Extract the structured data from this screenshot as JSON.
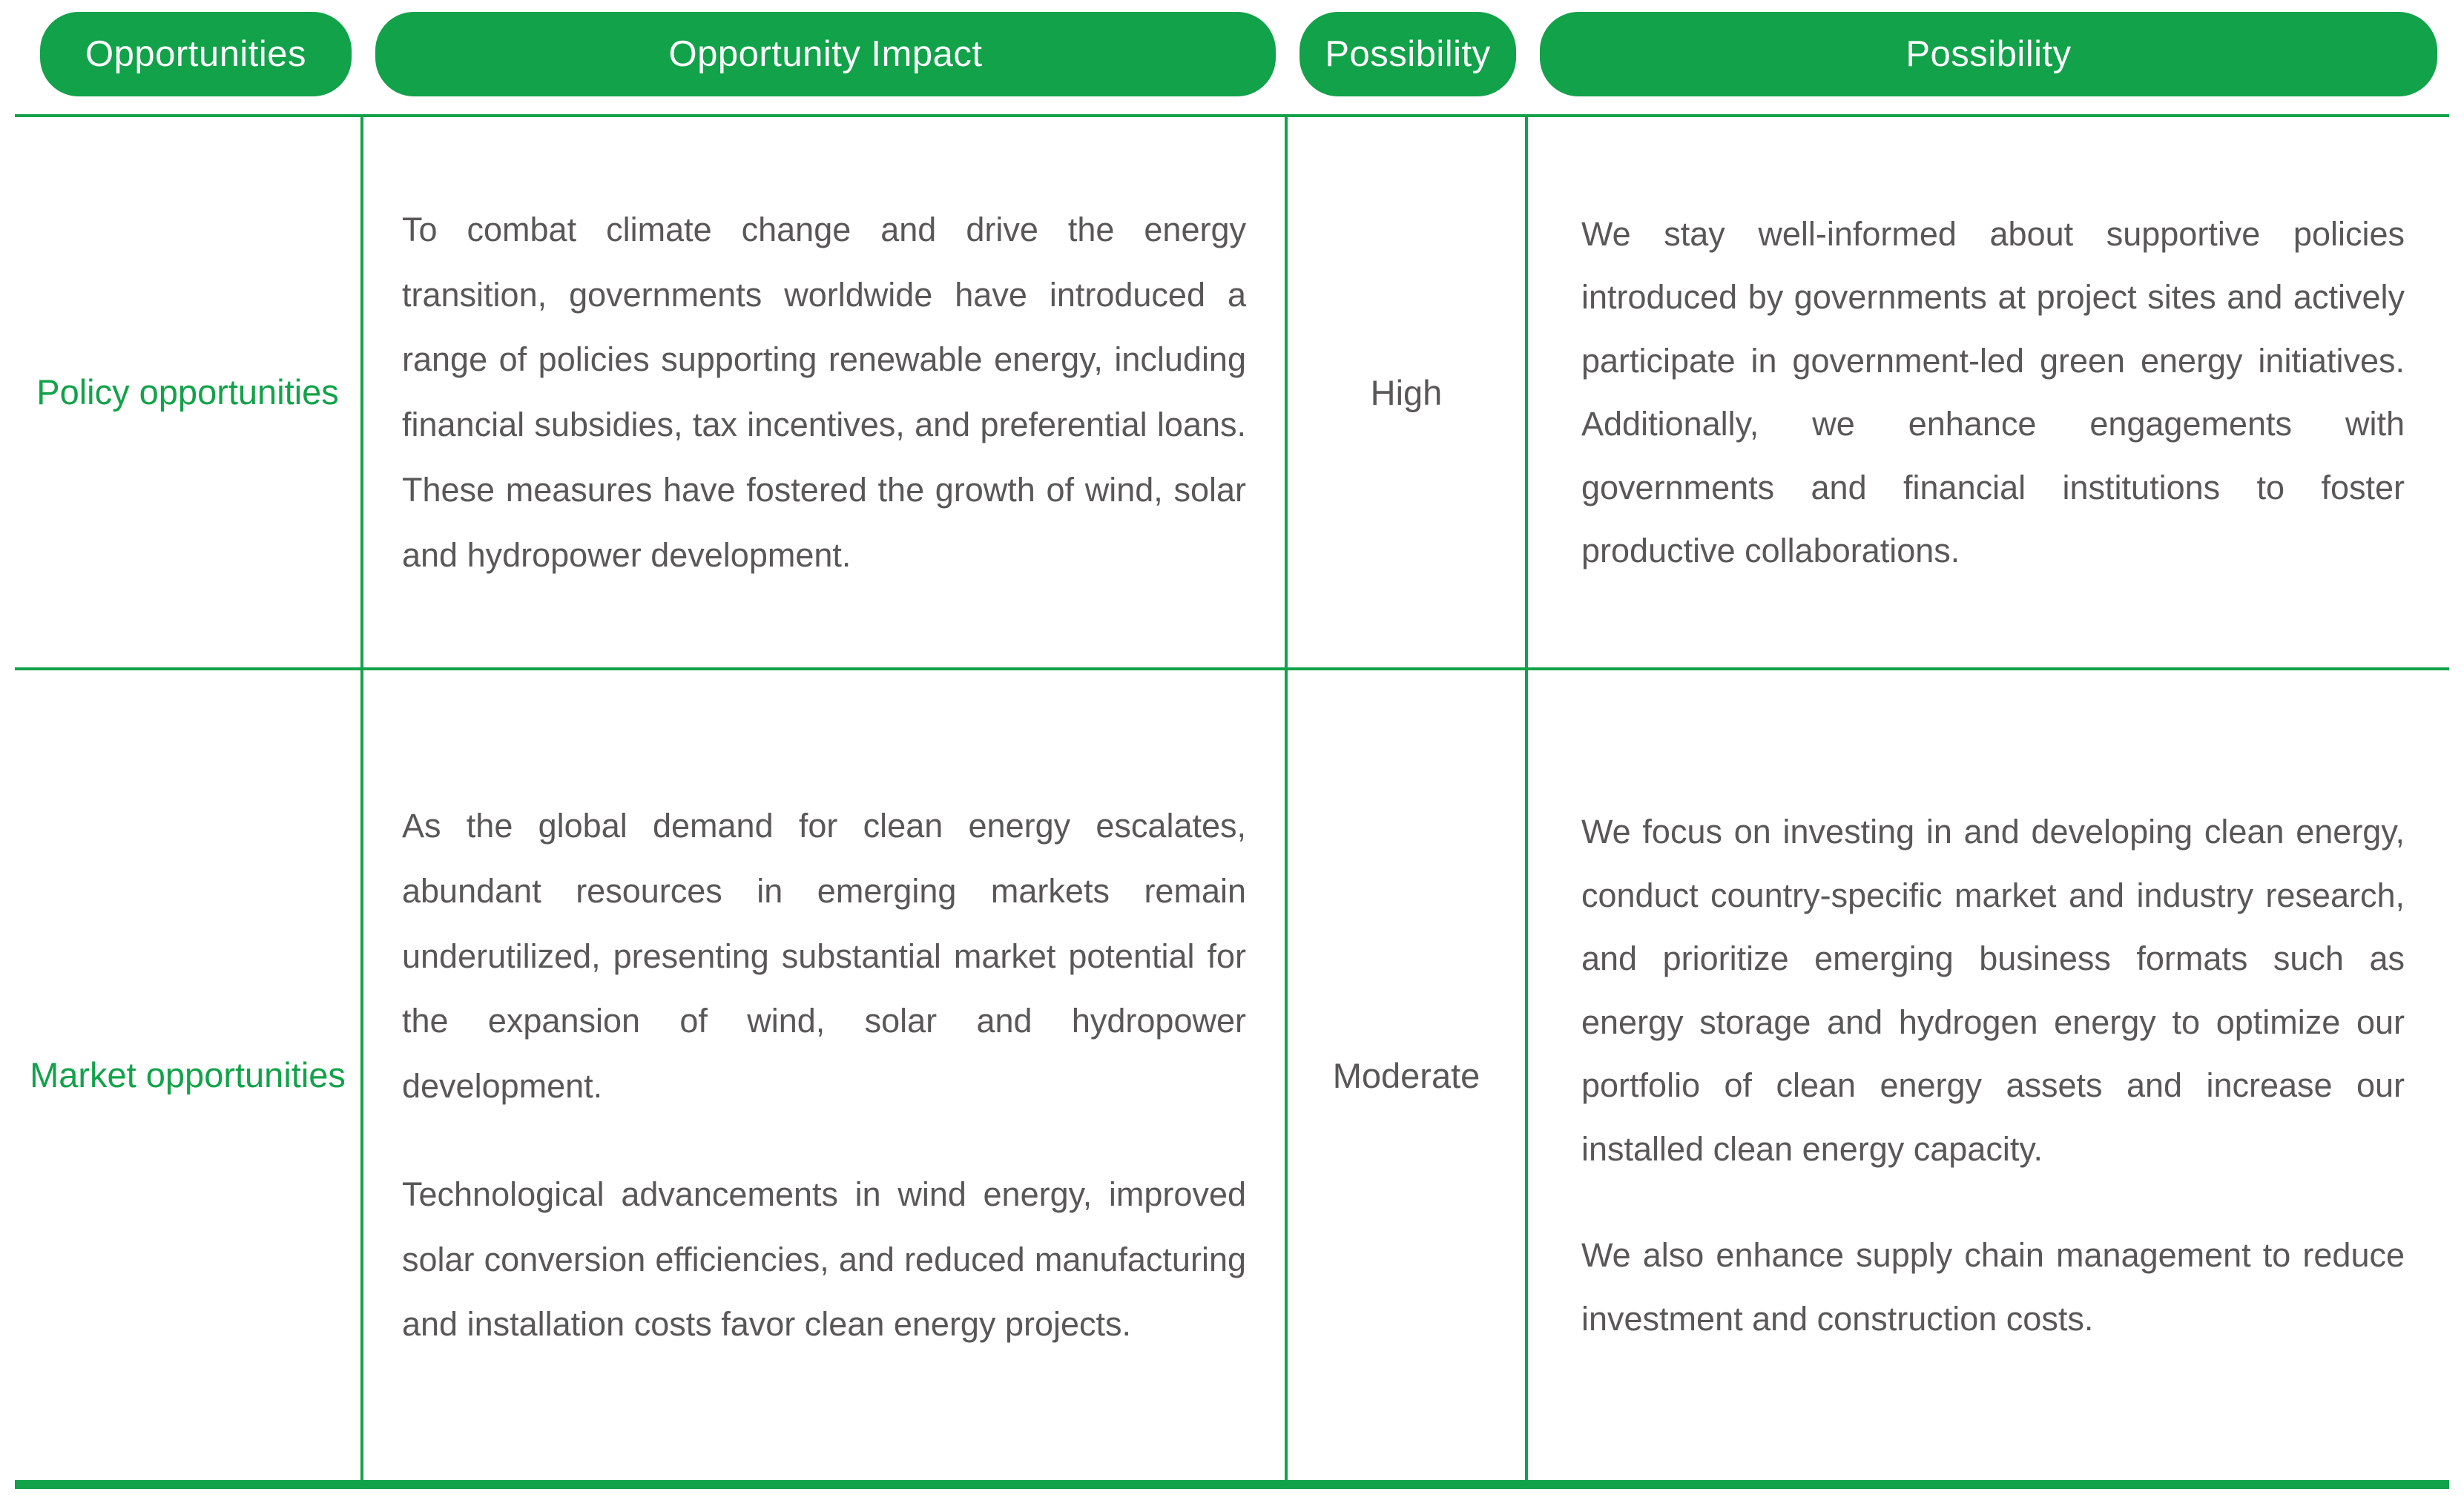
{
  "theme": {
    "accent_green": "#12a24a",
    "text_gray": "#595757",
    "header_text": "#ffffff"
  },
  "header": {
    "col1": "Opportunities",
    "col2": "Opportunity Impact",
    "col3": "Possibility",
    "col4": "Possibility"
  },
  "rows": [
    {
      "category": "Policy opportunities",
      "impact": [
        "To combat climate change and drive the energy transition, governments worldwide have introduced a range of policies supporting renewable energy, including financial subsidies, tax incentives, and preferential loans. These measures have fostered the growth of wind, solar and hydropower development."
      ],
      "level": "High",
      "response": [
        "We stay well-informed about supportive policies introduced by governments at project sites and actively participate in government-led green energy initiatives. Additionally, we enhance engagements with governments and financial institutions to foster productive collaborations."
      ]
    },
    {
      "category": "Market opportunities",
      "impact": [
        "As the global demand for clean energy escalates, abundant resources in emerging markets remain underutilized, presenting substantial market potential for the expansion of wind, solar and hydropower development.",
        "Technological advancements in wind energy, improved solar conversion efficiencies, and reduced manufacturing and installation costs favor clean energy projects."
      ],
      "level": "Moderate",
      "response": [
        "We focus on investing in and developing clean energy, conduct country-specific market and industry research, and prioritize emerging business formats such as energy storage and hydrogen energy to  optimize our portfolio of clean energy assets and increase our installed clean energy capacity.",
        "We also enhance supply chain management to reduce investment and construction costs."
      ]
    }
  ]
}
